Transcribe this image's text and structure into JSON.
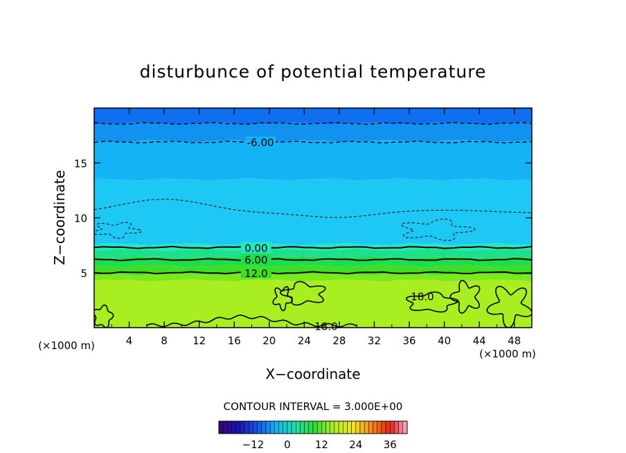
{
  "chart_data": {
    "type": "heatmap",
    "title": "disturbunce of potential temperature",
    "xlabel": "X−coordinate",
    "ylabel": "Z−coordinate",
    "x_unit": "(×1000 m)",
    "y_unit": "(×1000 m)",
    "xlim": [
      0,
      50
    ],
    "ylim": [
      0,
      20
    ],
    "x_ticks": [
      4,
      8,
      12,
      16,
      20,
      24,
      28,
      32,
      36,
      40,
      44,
      48
    ],
    "x_tick_labels": [
      "4",
      "8",
      "12",
      "16",
      "20",
      "24",
      "28",
      "32",
      "36",
      "40",
      "44",
      "48"
    ],
    "y_ticks": [
      5,
      10,
      15
    ],
    "y_tick_labels": [
      "5",
      "10",
      "15"
    ],
    "contour_interval_text": "CONTOUR INTERVAL = 3.000E+00",
    "field_bands": [
      {
        "z_from": 0,
        "z_to": 4.3,
        "value": 18,
        "color": "#a9ee21"
      },
      {
        "z_from": 4.3,
        "z_to": 4.9,
        "value": 15,
        "color": "#7ce81e"
      },
      {
        "z_from": 4.9,
        "z_to": 5.6,
        "value": 12,
        "color": "#3fde24"
      },
      {
        "z_from": 5.6,
        "z_to": 6.4,
        "value": 9,
        "color": "#20dd4e"
      },
      {
        "z_from": 6.4,
        "z_to": 7.1,
        "value": 6,
        "color": "#1fe08a"
      },
      {
        "z_from": 7.1,
        "z_to": 7.6,
        "value": 3,
        "color": "#27e6c2"
      },
      {
        "z_from": 7.6,
        "z_to": 13.5,
        "value": -3,
        "color": "#1ec8f5"
      },
      {
        "z_from": 13.5,
        "z_to": 17.0,
        "value": -5,
        "color": "#14b3f6"
      },
      {
        "z_from": 17.0,
        "z_to": 18.6,
        "value": -7,
        "color": "#1192f1"
      },
      {
        "z_from": 18.6,
        "z_to": 20,
        "value": -9,
        "color": "#0f6ff0"
      }
    ],
    "contours": [
      {
        "level": 0.0,
        "z": 7.3,
        "style": "solid",
        "label": "0.00",
        "label_x": 18.5
      },
      {
        "level": 6.0,
        "z": 6.2,
        "style": "solid",
        "label": "6.00",
        "label_x": 18.5
      },
      {
        "level": 12.0,
        "z": 5.0,
        "style": "solid",
        "label": "12.0",
        "label_x": 18.5
      },
      {
        "level": -6.0,
        "z": 16.9,
        "style": "dashed",
        "label": "-6.00",
        "label_x": 19
      },
      {
        "level": -9.0,
        "z": 18.6,
        "style": "dashed",
        "label": "",
        "label_x": 0
      }
    ],
    "extra_labels": [
      {
        "text": "18.0",
        "x": 37.5,
        "z": 2.8
      },
      {
        "text": "18.0",
        "x": 26.5,
        "z": 0.1
      }
    ],
    "colorbar": {
      "min": -24,
      "max": 42,
      "tick_values": [
        -12,
        0,
        12,
        24,
        36
      ],
      "tick_labels": [
        "−12",
        "0",
        "12",
        "24",
        "36"
      ]
    }
  }
}
